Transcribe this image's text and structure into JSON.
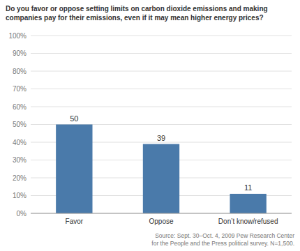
{
  "chart_data": {
    "type": "bar",
    "title": "Do you favor or oppose setting limits on carbon dioxide emissions and making\ncompanies pay for their emissions, even if it may mean higher energy prices?",
    "categories": [
      "Favor",
      "Oppose",
      "Don’t know/refused"
    ],
    "values": [
      50,
      39,
      11
    ],
    "color": "#4a7aaa",
    "ylim": [
      0,
      100
    ],
    "yticks": [
      {
        "value": 0,
        "label": "0%"
      },
      {
        "value": 10,
        "label": "10%"
      },
      {
        "value": 20,
        "label": "20%"
      },
      {
        "value": 30,
        "label": "30%"
      },
      {
        "value": 40,
        "label": "40%"
      },
      {
        "value": 50,
        "label": "50%"
      },
      {
        "value": 60,
        "label": "60%"
      },
      {
        "value": 70,
        "label": "70%"
      },
      {
        "value": 80,
        "label": "80%"
      },
      {
        "value": 90,
        "label": "90%"
      },
      {
        "value": 100,
        "label": "100%"
      }
    ],
    "grid": true,
    "data_labels": true,
    "annotations": [
      "Source: Sept. 30–Oct. 4, 2009 Pew Research Center\nfor the People and the Press political survey. N=1,500."
    ]
  }
}
